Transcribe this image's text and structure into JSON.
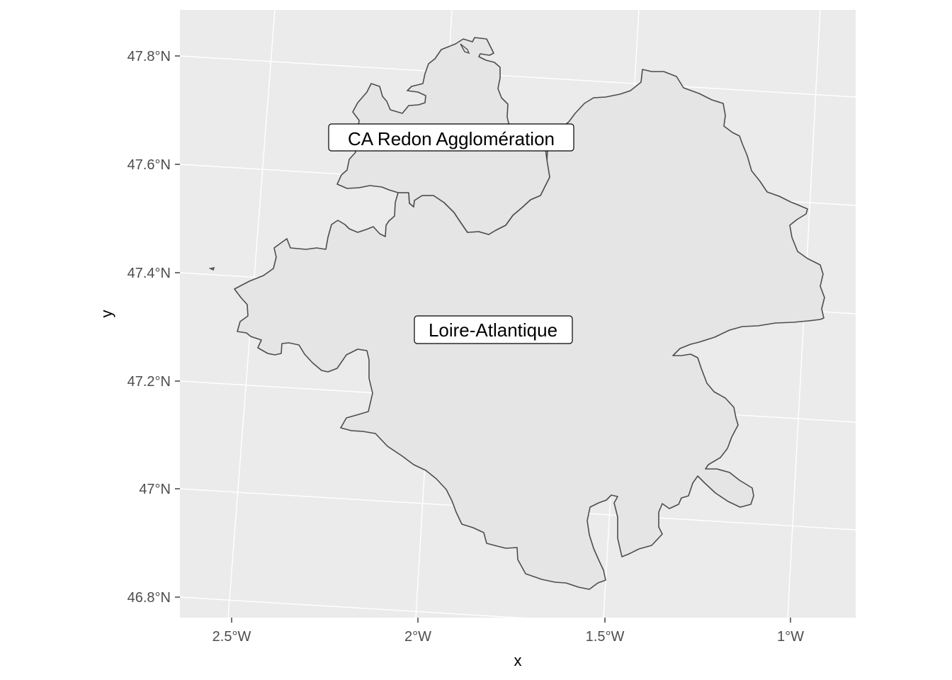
{
  "axes": {
    "x_title": "x",
    "y_title": "y",
    "lon_ticks": [
      {
        "value": -2.5,
        "label": "2.5°W"
      },
      {
        "value": -2.0,
        "label": "2°W"
      },
      {
        "value": -1.5,
        "label": "1.5°W"
      },
      {
        "value": -1.0,
        "label": "1°W"
      }
    ],
    "lat_ticks": [
      {
        "value": 47.8,
        "label": "47.8°N"
      },
      {
        "value": 47.6,
        "label": "47.6°N"
      },
      {
        "value": 47.4,
        "label": "47.4°N"
      },
      {
        "value": 47.2,
        "label": "47.2°N"
      },
      {
        "value": 47.0,
        "label": "47°N"
      },
      {
        "value": 46.8,
        "label": "46.8°N"
      }
    ]
  },
  "regions": [
    {
      "name": "CA Redon Agglomération"
    },
    {
      "name": "Loire-Atlantique"
    }
  ],
  "colors": {
    "panel": "#ebebeb",
    "gridline": "#ffffff",
    "region_fill": "#e5e5e5",
    "region_border": "#4d4d4d"
  }
}
